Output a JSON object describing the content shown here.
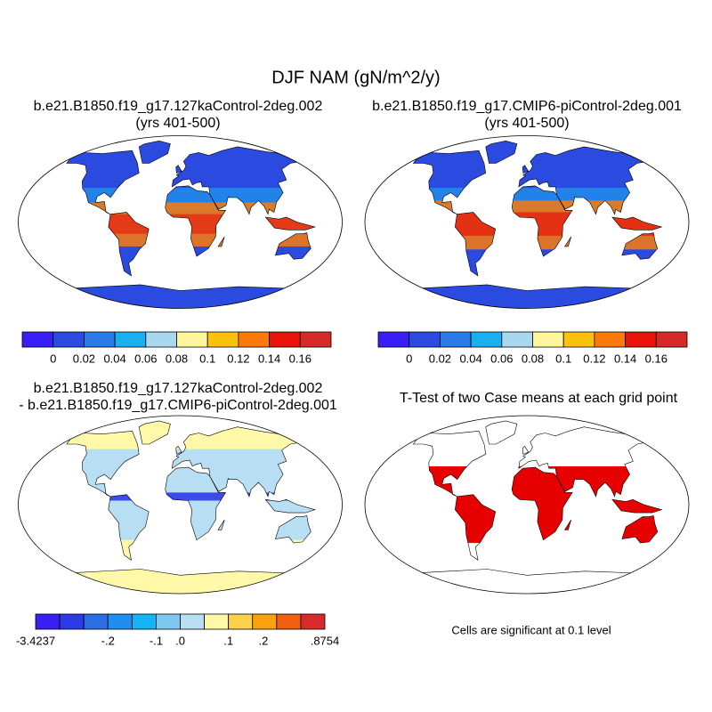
{
  "title": "DJF NAM (gN/m^2/y)",
  "panels": [
    {
      "title": [
        "b.e21.B1850.f19_g17.127kaControl-2deg.002",
        "(yrs 401-500)"
      ]
    },
    {
      "title": [
        "b.e21.B1850.f19_g17.CMIP6-piControl-2deg.001",
        "(yrs 401-500)"
      ]
    },
    {
      "title": [
        "b.e21.B1850.f19_g17.127kaControl-2deg.002",
        "- b.e21.B1850.f19_g17.CMIP6-piControl-2deg.001"
      ]
    },
    {
      "title": [
        "T-Test of two Case means at each grid point"
      ]
    }
  ],
  "colorbars": [
    {
      "colors": [
        "#3a1ff5",
        "#2b4be0",
        "#2a7ae8",
        "#1ab0f0",
        "#a8d8f0",
        "#fff59a",
        "#fcc10e",
        "#fa7a0a",
        "#e8140a",
        "#d42a2a"
      ],
      "labels": [
        "0",
        "0.02",
        "0.04",
        "0.06",
        "0.08",
        "0.1",
        "0.12",
        "0.14",
        "0.16"
      ]
    },
    {
      "colors": [
        "#3a1ff5",
        "#2b4be0",
        "#2a7ae8",
        "#1ab0f0",
        "#a8d8f0",
        "#fff59a",
        "#fcc10e",
        "#fa7a0a",
        "#e8140a",
        "#d42a2a"
      ],
      "labels": [
        "0",
        "0.02",
        "0.04",
        "0.06",
        "0.08",
        "0.1",
        "0.12",
        "0.14",
        "0.16"
      ]
    },
    {
      "colors": [
        "#3a1ff5",
        "#2d3ae8",
        "#2a6de6",
        "#1e8ff0",
        "#12b5f5",
        "#7ec8f0",
        "#b7def2",
        "#fff8a8",
        "#fdd24a",
        "#fba10c",
        "#f06010",
        "#d82a2a"
      ],
      "labels": [
        "-3.4237",
        "-.2",
        "-.1",
        ".0",
        ".1",
        ".2",
        ".8754"
      ]
    }
  ],
  "note": "Cells are significant at 0.1 level"
}
